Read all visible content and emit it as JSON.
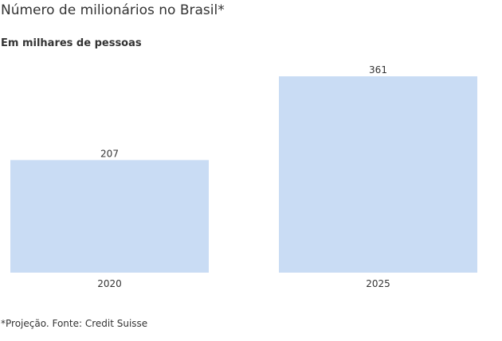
{
  "chart_data": {
    "type": "bar",
    "title": "Número de milionários no Brasil*",
    "subtitle": "Em milhares de pessoas",
    "categories": [
      "2020",
      "2025"
    ],
    "values": [
      207,
      361
    ],
    "value_labels": [
      "207",
      "361"
    ],
    "ylim": [
      0,
      361
    ],
    "grid": false,
    "legend": "none",
    "bar_color": "#c9dcf4",
    "footnote": "*Projeção. Fonte: Credit Suisse"
  }
}
